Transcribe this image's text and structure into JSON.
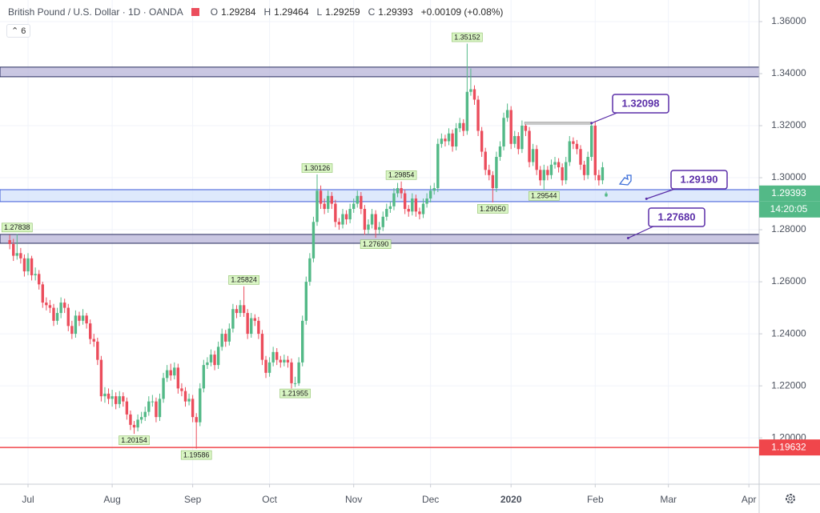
{
  "header": {
    "title": "British Pound / U.S. Dollar · 1D · OANDA",
    "fields": [
      "O",
      "H",
      "L",
      "C"
    ],
    "change": "+0.00109 (+0.08%)",
    "indicators": 6
  },
  "chart_data": {
    "type": "candlestick",
    "up_color": "#53b987",
    "down_color": "#eb4d5c",
    "xlim": [
      -2.66,
      204.8
    ],
    "ylim": [
      1.1822,
      1.3683
    ],
    "xticks": [
      {
        "value": 5,
        "label": "Jul"
      },
      {
        "value": 28,
        "label": "Aug"
      },
      {
        "value": 50,
        "label": "Sep"
      },
      {
        "value": 71,
        "label": "Oct"
      },
      {
        "value": 94,
        "label": "Nov"
      },
      {
        "value": 115,
        "label": "Dec"
      },
      {
        "value": 137,
        "label": "2020"
      },
      {
        "value": 160,
        "label": "Feb"
      },
      {
        "value": 180,
        "label": "Mar"
      },
      {
        "value": 202,
        "label": "Apr"
      }
    ],
    "yticks": [
      {
        "value": 1.2,
        "label": "1.20000"
      },
      {
        "value": 1.22,
        "label": "1.22000"
      },
      {
        "value": 1.24,
        "label": "1.24000"
      },
      {
        "value": 1.26,
        "label": "1.26000"
      },
      {
        "value": 1.28,
        "label": "1.28000"
      },
      {
        "value": 1.3,
        "label": "1.30000"
      },
      {
        "value": 1.32,
        "label": "1.32000"
      },
      {
        "value": 1.34,
        "label": "1.34000"
      },
      {
        "value": 1.36,
        "label": "1.36000"
      }
    ],
    "candles": [
      [
        1.276,
        1.278,
        1.2725,
        1.2745
      ],
      [
        1.2745,
        1.2765,
        1.268,
        1.27
      ],
      [
        1.27,
        1.27838,
        1.2685,
        1.271
      ],
      [
        1.271,
        1.273,
        1.267,
        1.269
      ],
      [
        1.269,
        1.2705,
        1.262,
        1.264
      ],
      [
        1.264,
        1.271,
        1.2625,
        1.269
      ],
      [
        1.269,
        1.27,
        1.2605,
        1.2625
      ],
      [
        1.2625,
        1.2655,
        1.2605,
        1.263
      ],
      [
        1.263,
        1.2645,
        1.257,
        1.259
      ],
      [
        1.259,
        1.26,
        1.25,
        1.252
      ],
      [
        1.252,
        1.254,
        1.249,
        1.251
      ],
      [
        1.251,
        1.253,
        1.248,
        1.25
      ],
      [
        1.25,
        1.2515,
        1.243,
        1.245
      ],
      [
        1.245,
        1.25,
        1.2435,
        1.248
      ],
      [
        1.248,
        1.254,
        1.246,
        1.252
      ],
      [
        1.252,
        1.2535,
        1.248,
        1.25
      ],
      [
        1.25,
        1.2515,
        1.241,
        1.243
      ],
      [
        1.243,
        1.245,
        1.238,
        1.24
      ],
      [
        1.24,
        1.249,
        1.2385,
        1.247
      ],
      [
        1.247,
        1.2485,
        1.243,
        1.245
      ],
      [
        1.245,
        1.2495,
        1.2435,
        1.247
      ],
      [
        1.247,
        1.248,
        1.242,
        1.244
      ],
      [
        1.244,
        1.2455,
        1.236,
        1.238
      ],
      [
        1.238,
        1.24,
        1.235,
        1.237
      ],
      [
        1.237,
        1.2385,
        1.228,
        1.23
      ],
      [
        1.23,
        1.2315,
        1.214,
        1.216
      ],
      [
        1.216,
        1.2195,
        1.2135,
        1.217
      ],
      [
        1.217,
        1.219,
        1.213,
        1.215
      ],
      [
        1.215,
        1.2185,
        1.212,
        1.216
      ],
      [
        1.216,
        1.2175,
        1.211,
        1.213
      ],
      [
        1.213,
        1.218,
        1.2115,
        1.216
      ],
      [
        1.216,
        1.2175,
        1.212,
        1.214
      ],
      [
        1.214,
        1.2155,
        1.207,
        1.209
      ],
      [
        1.209,
        1.2105,
        1.203,
        1.205
      ],
      [
        1.205,
        1.2065,
        1.20154,
        1.204
      ],
      [
        1.204,
        1.209,
        1.2025,
        1.207
      ],
      [
        1.207,
        1.21,
        1.2055,
        1.208
      ],
      [
        1.208,
        1.212,
        1.2065,
        1.21
      ],
      [
        1.21,
        1.216,
        1.2085,
        1.214
      ],
      [
        1.214,
        1.2165,
        1.212,
        1.214
      ],
      [
        1.214,
        1.2155,
        1.206,
        1.208
      ],
      [
        1.208,
        1.217,
        1.2065,
        1.215
      ],
      [
        1.215,
        1.225,
        1.2135,
        1.223
      ],
      [
        1.223,
        1.228,
        1.2215,
        1.226
      ],
      [
        1.226,
        1.2285,
        1.222,
        1.224
      ],
      [
        1.224,
        1.229,
        1.2225,
        1.227
      ],
      [
        1.227,
        1.2285,
        1.217,
        1.219
      ],
      [
        1.219,
        1.221,
        1.216,
        1.218
      ],
      [
        1.218,
        1.2195,
        1.212,
        1.214
      ],
      [
        1.214,
        1.217,
        1.2125,
        1.215
      ],
      [
        1.215,
        1.2165,
        1.206,
        1.208
      ],
      [
        1.208,
        1.2095,
        1.19586,
        1.206
      ],
      [
        1.206,
        1.221,
        1.2045,
        1.219
      ],
      [
        1.219,
        1.23,
        1.2175,
        1.228
      ],
      [
        1.228,
        1.231,
        1.2265,
        1.229
      ],
      [
        1.229,
        1.234,
        1.2275,
        1.232
      ],
      [
        1.232,
        1.2335,
        1.226,
        1.228
      ],
      [
        1.228,
        1.237,
        1.2265,
        1.235
      ],
      [
        1.235,
        1.242,
        1.2335,
        1.24
      ],
      [
        1.24,
        1.2415,
        1.235,
        1.237
      ],
      [
        1.237,
        1.244,
        1.2355,
        1.242
      ],
      [
        1.242,
        1.2515,
        1.2405,
        1.2495
      ],
      [
        1.2495,
        1.251,
        1.246,
        1.248
      ],
      [
        1.248,
        1.253,
        1.2465,
        1.251
      ],
      [
        1.251,
        1.25824,
        1.2465,
        1.248
      ],
      [
        1.248,
        1.2495,
        1.238,
        1.24
      ],
      [
        1.24,
        1.248,
        1.2385,
        1.246
      ],
      [
        1.246,
        1.2475,
        1.243,
        1.245
      ],
      [
        1.245,
        1.2465,
        1.238,
        1.24
      ],
      [
        1.24,
        1.2415,
        1.228,
        1.23
      ],
      [
        1.23,
        1.2315,
        1.223,
        1.225
      ],
      [
        1.225,
        1.231,
        1.2235,
        1.229
      ],
      [
        1.229,
        1.235,
        1.2275,
        1.233
      ],
      [
        1.233,
        1.2345,
        1.228,
        1.23
      ],
      [
        1.23,
        1.2315,
        1.227,
        1.229
      ],
      [
        1.229,
        1.232,
        1.2275,
        1.23
      ],
      [
        1.23,
        1.2315,
        1.227,
        1.229
      ],
      [
        1.229,
        1.2305,
        1.219,
        1.221
      ],
      [
        1.221,
        1.2235,
        1.21955,
        1.221
      ],
      [
        1.221,
        1.231,
        1.22,
        1.229
      ],
      [
        1.229,
        1.247,
        1.2275,
        1.245
      ],
      [
        1.245,
        1.262,
        1.2435,
        1.26
      ],
      [
        1.26,
        1.271,
        1.2585,
        1.269
      ],
      [
        1.269,
        1.285,
        1.2675,
        1.283
      ],
      [
        1.283,
        1.30126,
        1.2815,
        1.295
      ],
      [
        1.295,
        1.297,
        1.288,
        1.29
      ],
      [
        1.29,
        1.292,
        1.286,
        1.288
      ],
      [
        1.288,
        1.295,
        1.2865,
        1.293
      ],
      [
        1.293,
        1.2945,
        1.288,
        1.29
      ],
      [
        1.29,
        1.2915,
        1.281,
        1.283
      ],
      [
        1.283,
        1.2845,
        1.28,
        1.282
      ],
      [
        1.282,
        1.288,
        1.2805,
        1.286
      ],
      [
        1.286,
        1.2875,
        1.282,
        1.284
      ],
      [
        1.284,
        1.29,
        1.2825,
        1.288
      ],
      [
        1.288,
        1.292,
        1.2865,
        1.29
      ],
      [
        1.29,
        1.295,
        1.2885,
        1.293
      ],
      [
        1.293,
        1.2945,
        1.286,
        1.288
      ],
      [
        1.288,
        1.2895,
        1.278,
        1.28
      ],
      [
        1.28,
        1.284,
        1.2785,
        1.282
      ],
      [
        1.282,
        1.288,
        1.2805,
        1.286
      ],
      [
        1.286,
        1.2875,
        1.2769,
        1.28
      ],
      [
        1.28,
        1.283,
        1.2785,
        1.281
      ],
      [
        1.281,
        1.287,
        1.2795,
        1.285
      ],
      [
        1.285,
        1.29,
        1.2835,
        1.288
      ],
      [
        1.288,
        1.291,
        1.2865,
        1.289
      ],
      [
        1.289,
        1.296,
        1.2875,
        1.294
      ],
      [
        1.294,
        1.298,
        1.2925,
        1.296
      ],
      [
        1.296,
        1.29854,
        1.292,
        1.294
      ],
      [
        1.294,
        1.2955,
        1.286,
        1.288
      ],
      [
        1.288,
        1.2895,
        1.285,
        1.287
      ],
      [
        1.287,
        1.294,
        1.2855,
        1.292
      ],
      [
        1.292,
        1.2935,
        1.285,
        1.287
      ],
      [
        1.287,
        1.2885,
        1.284,
        1.286
      ],
      [
        1.286,
        1.292,
        1.2845,
        1.29
      ],
      [
        1.29,
        1.294,
        1.2885,
        1.292
      ],
      [
        1.292,
        1.297,
        1.2905,
        1.295
      ],
      [
        1.295,
        1.298,
        1.2935,
        1.296
      ],
      [
        1.296,
        1.315,
        1.2945,
        1.313
      ],
      [
        1.313,
        1.317,
        1.3115,
        1.315
      ],
      [
        1.315,
        1.3165,
        1.312,
        1.314
      ],
      [
        1.314,
        1.319,
        1.3125,
        1.317
      ],
      [
        1.317,
        1.3185,
        1.31,
        1.312
      ],
      [
        1.312,
        1.321,
        1.3105,
        1.319
      ],
      [
        1.319,
        1.323,
        1.3175,
        1.321
      ],
      [
        1.321,
        1.3225,
        1.316,
        1.318
      ],
      [
        1.318,
        1.35152,
        1.3165,
        1.333
      ],
      [
        1.333,
        1.342,
        1.3315,
        1.334
      ],
      [
        1.334,
        1.3355,
        1.328,
        1.33
      ],
      [
        1.33,
        1.3315,
        1.316,
        1.318
      ],
      [
        1.318,
        1.3195,
        1.308,
        1.31
      ],
      [
        1.31,
        1.3115,
        1.301,
        1.303
      ],
      [
        1.303,
        1.305,
        1.299,
        1.301
      ],
      [
        1.301,
        1.3025,
        1.2905,
        1.296
      ],
      [
        1.296,
        1.31,
        1.2945,
        1.308
      ],
      [
        1.308,
        1.314,
        1.3065,
        1.312
      ],
      [
        1.312,
        1.325,
        1.3105,
        1.323
      ],
      [
        1.323,
        1.3285,
        1.3215,
        1.326
      ],
      [
        1.326,
        1.3275,
        1.311,
        1.313
      ],
      [
        1.313,
        1.318,
        1.3115,
        1.316
      ],
      [
        1.316,
        1.3175,
        1.309,
        1.311
      ],
      [
        1.311,
        1.322,
        1.3095,
        1.32
      ],
      [
        1.32,
        1.3215,
        1.316,
        1.318
      ],
      [
        1.318,
        1.3195,
        1.304,
        1.306
      ],
      [
        1.306,
        1.313,
        1.3045,
        1.311
      ],
      [
        1.311,
        1.3125,
        1.301,
        1.303
      ],
      [
        1.303,
        1.3045,
        1.297,
        1.299
      ],
      [
        1.299,
        1.305,
        1.29544,
        1.303
      ],
      [
        1.303,
        1.3045,
        1.299,
        1.301
      ],
      [
        1.301,
        1.307,
        1.2995,
        1.305
      ],
      [
        1.305,
        1.308,
        1.3035,
        1.306
      ],
      [
        1.306,
        1.3075,
        1.302,
        1.304
      ],
      [
        1.304,
        1.3055,
        1.297,
        1.299
      ],
      [
        1.299,
        1.308,
        1.2975,
        1.306
      ],
      [
        1.306,
        1.316,
        1.3045,
        1.314
      ],
      [
        1.314,
        1.3155,
        1.311,
        1.313
      ],
      [
        1.313,
        1.3145,
        1.309,
        1.311
      ],
      [
        1.311,
        1.3125,
        1.303,
        1.305
      ],
      [
        1.305,
        1.3065,
        1.299,
        1.301
      ],
      [
        1.301,
        1.31,
        1.2995,
        1.308
      ],
      [
        1.308,
        1.32098,
        1.3065,
        1.32
      ],
      [
        1.32,
        1.3215,
        1.299,
        1.301
      ],
      [
        1.301,
        1.303,
        1.297,
        1.299
      ],
      [
        1.299,
        1.306,
        1.2975,
        1.304
      ],
      [
        1.29284,
        1.29464,
        1.29259,
        1.29393
      ]
    ],
    "price_labels": [
      {
        "x": 2,
        "value": 1.27838
      },
      {
        "x": 34,
        "value": 1.20154
      },
      {
        "x": 51,
        "value": 1.19586
      },
      {
        "x": 64,
        "value": 1.25824
      },
      {
        "x": 78,
        "value": 1.21955
      },
      {
        "x": 84,
        "value": 1.30126
      },
      {
        "x": 100,
        "value": 1.2769,
        "label": "1.27690"
      },
      {
        "x": 107,
        "value": 1.29854
      },
      {
        "x": 125,
        "value": 1.35152
      },
      {
        "x": 132,
        "value": 1.2905,
        "label": "1.29050"
      },
      {
        "x": 146,
        "value": 1.29544
      }
    ],
    "zones": [
      {
        "from": 1.3388,
        "to": 1.3425,
        "color": "#b8b4d8"
      },
      {
        "from": 1.2908,
        "to": 1.2954,
        "color": "#d3e2fb"
      },
      {
        "from": 1.2748,
        "to": 1.2782,
        "color": "#b8b4d8"
      }
    ],
    "red_line": {
      "value": 1.19632,
      "color": "#f0464b"
    },
    "callouts": [
      {
        "x": 159,
        "value": 1.32098
      },
      {
        "x": 174,
        "value": 1.2919,
        "label": "1.29190"
      },
      {
        "x": 169,
        "value": 1.2768,
        "label": "1.27680"
      }
    ],
    "countdown": "14:20:05"
  }
}
